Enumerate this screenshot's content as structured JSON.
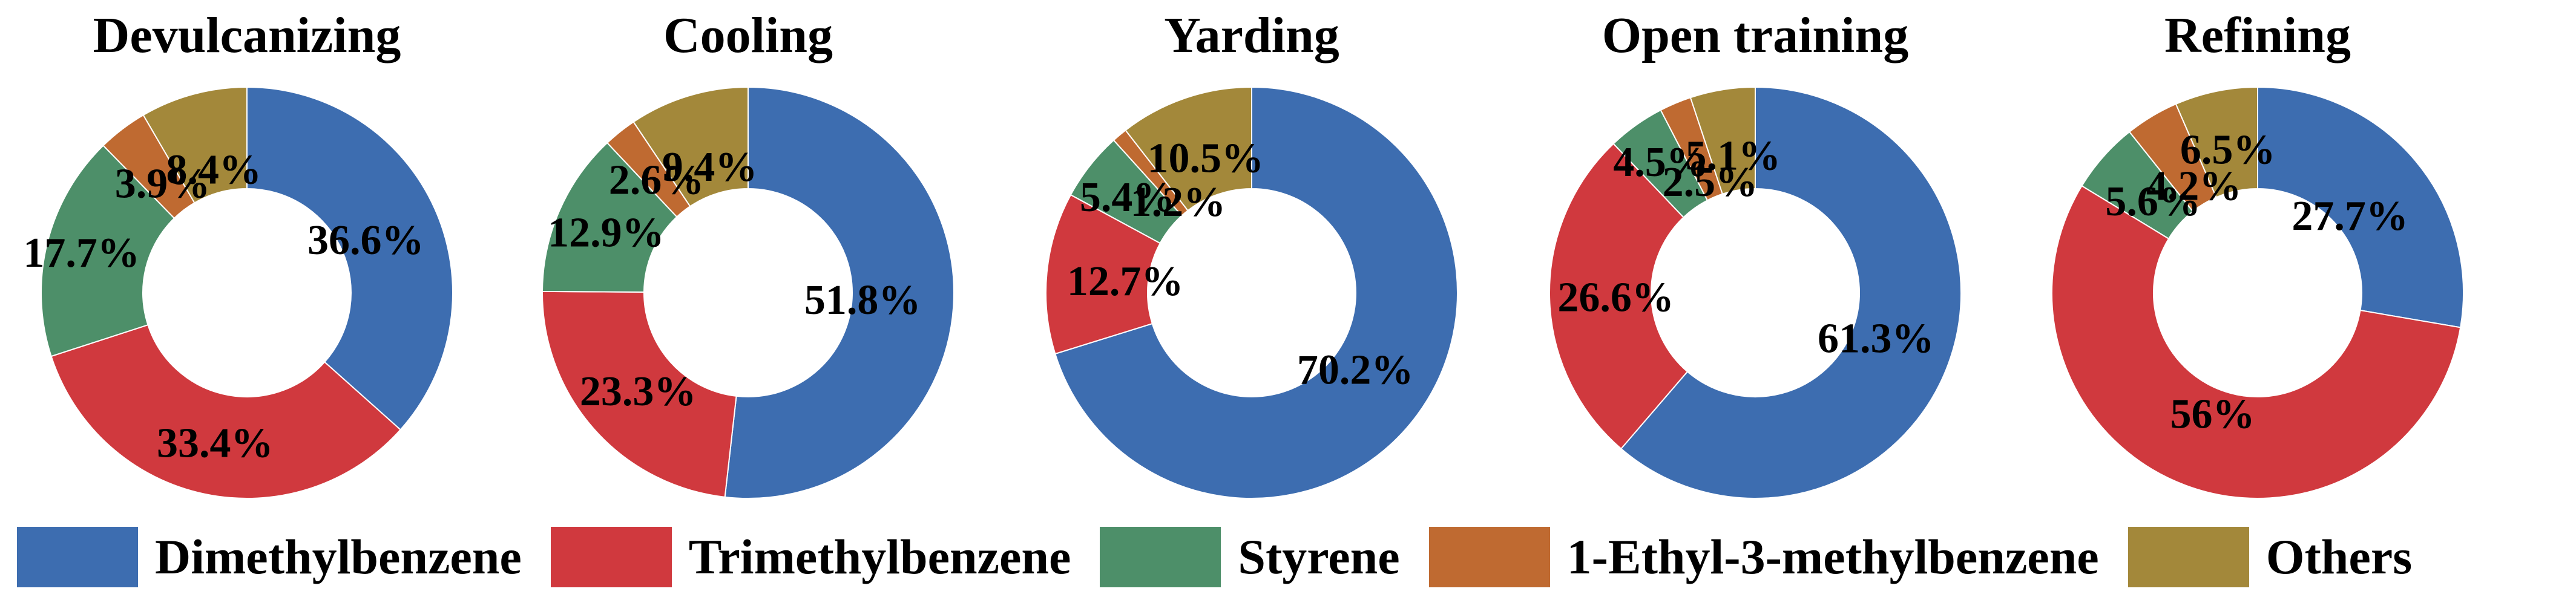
{
  "chart_data": {
    "type": "pie",
    "variant": "donut",
    "colors": {
      "Dimethylbenzene": "#3d6db0",
      "Trimethylbenzene": "#d0393e",
      "Styrene": "#4d8f69",
      "1-Ethyl-3-methylbenzene": "#bf6a31",
      "Others": "#a3883a"
    },
    "legend": {
      "placement": "bottom",
      "entries": [
        "Dimethylbenzene",
        "Trimethylbenzene",
        "Styrene",
        "1-Ethyl-3-methylbenzene",
        "Others"
      ]
    },
    "charts": [
      {
        "title": "Devulcanizing",
        "categories": [
          "Dimethylbenzene",
          "Trimethylbenzene",
          "Styrene",
          "1-Ethyl-3-methylbenzene",
          "Others"
        ],
        "values": [
          36.6,
          33.4,
          17.7,
          3.9,
          8.4
        ],
        "labels": [
          "36.6%",
          "33.4%",
          "17.7%",
          "3.9%",
          "8.4%"
        ]
      },
      {
        "title": "Cooling",
        "categories": [
          "Dimethylbenzene",
          "Trimethylbenzene",
          "Styrene",
          "1-Ethyl-3-methylbenzene",
          "Others"
        ],
        "values": [
          51.8,
          23.3,
          12.9,
          2.6,
          9.4
        ],
        "labels": [
          "51.8%",
          "23.3%",
          "12.9%",
          "2.6%",
          "9.4%"
        ]
      },
      {
        "title": "Yarding",
        "categories": [
          "Dimethylbenzene",
          "Trimethylbenzene",
          "Styrene",
          "1-Ethyl-3-methylbenzene",
          "Others"
        ],
        "values": [
          70.2,
          12.7,
          5.4,
          1.2,
          10.5
        ],
        "labels": [
          "70.2%",
          "12.7%",
          "5.4%",
          "1.2%",
          "10.5%"
        ]
      },
      {
        "title": "Open training",
        "categories": [
          "Dimethylbenzene",
          "Trimethylbenzene",
          "Styrene",
          "1-Ethyl-3-methylbenzene",
          "Others"
        ],
        "values": [
          61.3,
          26.6,
          4.5,
          2.5,
          5.1
        ],
        "labels": [
          "61.3%",
          "26.6%",
          "4.5%",
          "2.5%",
          "5.1%"
        ]
      },
      {
        "title": "Refining",
        "categories": [
          "Dimethylbenzene",
          "Trimethylbenzene",
          "Styrene",
          "1-Ethyl-3-methylbenzene",
          "Others"
        ],
        "values": [
          27.7,
          56,
          5.6,
          4.2,
          6.5
        ],
        "labels": [
          "27.7%",
          "56%",
          "5.6%",
          "4.2%",
          "6.5%"
        ]
      }
    ]
  }
}
